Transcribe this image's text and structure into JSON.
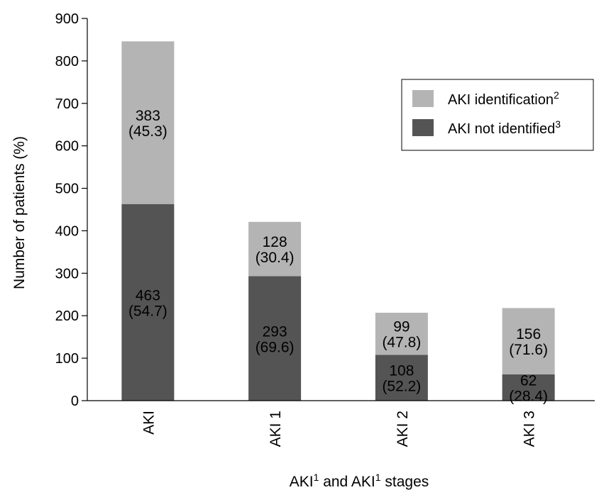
{
  "chart_data": {
    "type": "bar",
    "stacked": true,
    "categories": [
      "AKI",
      "AKI 1",
      "AKI 2",
      "AKI 3"
    ],
    "series": [
      {
        "name": "AKI not identified",
        "name_superscript": "3",
        "color": "#545454",
        "values": [
          463,
          293,
          108,
          62
        ],
        "percents": [
          "(54.7)",
          "(69.6)",
          "(52.2)",
          "(28.4)"
        ]
      },
      {
        "name": "AKI identification",
        "name_superscript": "2",
        "color": "#b4b4b4",
        "values": [
          383,
          128,
          99,
          156
        ],
        "percents": [
          "(45.3)",
          "(30.4)",
          "(47.8)",
          "(71.6)"
        ]
      }
    ],
    "yticks": [
      0,
      100,
      200,
      300,
      400,
      500,
      600,
      700,
      800,
      900
    ],
    "ylim": [
      0,
      900
    ],
    "ylabel": "Number of patients (%)",
    "xlabel": {
      "part1": "AKI",
      "sup1": "1",
      "part2": " and  AKI",
      "sup2": "1",
      "part3": " stages"
    },
    "legend_position": "top-right",
    "grid": false
  }
}
